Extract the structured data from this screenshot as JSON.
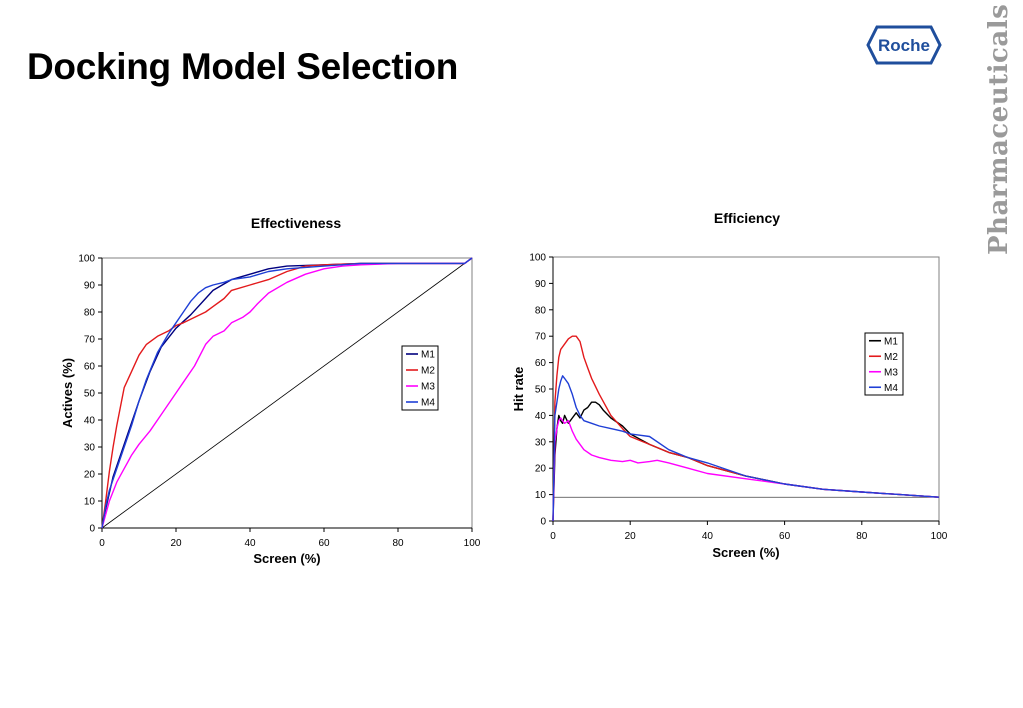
{
  "slide": {
    "title": "Docking Model Selection",
    "logo_text": "Roche",
    "brand_text": "Pharmaceuticals",
    "colors": {
      "logo_blue": "#1f4e9c",
      "brand_gray": "#9a9a9a"
    }
  },
  "chart_data": [
    {
      "type": "line",
      "title": "Effectiveness",
      "xlabel": "Screen (%)",
      "ylabel": "Actives (%)",
      "xlim": [
        0,
        100
      ],
      "ylim": [
        0,
        100
      ],
      "xticks": [
        0,
        20,
        40,
        60,
        80,
        100
      ],
      "yticks": [
        0,
        10,
        20,
        30,
        40,
        50,
        60,
        70,
        80,
        90,
        100
      ],
      "legend": "right",
      "grid": false,
      "reference_line": {
        "x": [
          0,
          100
        ],
        "y": [
          0,
          100
        ],
        "color": "#000000"
      },
      "series": [
        {
          "name": "M1",
          "color": "#00007f",
          "x": [
            0,
            1,
            2,
            3,
            5,
            7,
            10,
            13,
            16,
            20,
            24,
            28,
            30,
            35,
            40,
            45,
            50,
            60,
            70,
            80,
            90,
            98,
            99,
            100
          ],
          "y": [
            0,
            7,
            13,
            19,
            27,
            35,
            47,
            58,
            67,
            74,
            79,
            85,
            88,
            92,
            94,
            96,
            97,
            97.5,
            98,
            98,
            98,
            98,
            99,
            100
          ]
        },
        {
          "name": "M2",
          "color": "#e31a1c",
          "x": [
            0,
            1,
            2,
            3,
            4,
            5,
            6,
            8,
            10,
            12,
            15,
            18,
            20,
            22,
            25,
            28,
            30,
            33,
            35,
            40,
            45,
            50,
            55,
            60,
            70,
            80,
            90,
            98,
            99,
            100
          ],
          "y": [
            0,
            10,
            21,
            30,
            38,
            45,
            52,
            58,
            64,
            68,
            71,
            73,
            75,
            76,
            78,
            80,
            82,
            85,
            88,
            90,
            92,
            95,
            97,
            97.5,
            98,
            98,
            98,
            98,
            99,
            100
          ]
        },
        {
          "name": "M3",
          "color": "#ff00ff",
          "x": [
            0,
            2,
            4,
            6,
            8,
            10,
            13,
            16,
            20,
            22,
            25,
            28,
            30,
            33,
            35,
            38,
            40,
            42,
            45,
            50,
            55,
            60,
            65,
            70,
            80,
            90,
            98,
            99,
            100
          ],
          "y": [
            0,
            10,
            17,
            22,
            27,
            31,
            36,
            42,
            50,
            54,
            60,
            68,
            71,
            73,
            76,
            78,
            80,
            83,
            87,
            91,
            94,
            96,
            97,
            97.5,
            98,
            98,
            98,
            99,
            100
          ]
        },
        {
          "name": "M4",
          "color": "#1f3fd6",
          "x": [
            0,
            1,
            2,
            4,
            6,
            8,
            10,
            12,
            15,
            18,
            20,
            22,
            24,
            26,
            28,
            30,
            33,
            35,
            40,
            45,
            50,
            60,
            70,
            80,
            90,
            98,
            99,
            100
          ],
          "y": [
            0,
            8,
            14,
            22,
            30,
            38,
            47,
            55,
            65,
            72,
            76,
            80,
            84,
            87,
            89,
            90,
            91,
            92,
            93,
            95,
            96,
            97,
            98,
            98,
            98,
            98,
            99,
            100
          ]
        }
      ]
    },
    {
      "type": "line",
      "title": "Efficiency",
      "xlabel": "Screen (%)",
      "ylabel": "Hit rate",
      "xlim": [
        0,
        100
      ],
      "ylim": [
        0,
        100
      ],
      "xticks": [
        0,
        20,
        40,
        60,
        80,
        100
      ],
      "yticks": [
        0,
        10,
        20,
        30,
        40,
        50,
        60,
        70,
        80,
        90,
        100
      ],
      "legend": "right",
      "grid": false,
      "reference_line": {
        "x": [
          0,
          100
        ],
        "y": [
          9,
          9
        ],
        "color": "#404040"
      },
      "series": [
        {
          "name": "M1",
          "color": "#000000",
          "x": [
            0,
            0.5,
            1,
            1.5,
            2,
            2.5,
            3,
            4,
            5,
            6,
            7,
            8,
            9,
            10,
            11,
            12,
            13,
            15,
            18,
            20,
            25,
            30,
            35,
            40,
            50,
            60,
            70,
            80,
            90,
            100
          ],
          "y": [
            0,
            25,
            35,
            40,
            38,
            37,
            40,
            37,
            39,
            41,
            39,
            42,
            43,
            45,
            45,
            44,
            42,
            39,
            36,
            33,
            29,
            26,
            24,
            21,
            17,
            14,
            12,
            11,
            10,
            9
          ]
        },
        {
          "name": "M2",
          "color": "#e31a1c",
          "x": [
            0,
            0.5,
            1,
            1.5,
            2,
            3,
            4,
            5,
            6,
            7,
            8,
            9,
            10,
            12,
            15,
            18,
            20,
            25,
            30,
            35,
            40,
            50,
            60,
            70,
            80,
            90,
            100
          ],
          "y": [
            0,
            45,
            55,
            62,
            65,
            67,
            69,
            70,
            70,
            68,
            62,
            58,
            54,
            48,
            40,
            35,
            32,
            29,
            26,
            24,
            21,
            17,
            14,
            12,
            11,
            10,
            9
          ]
        },
        {
          "name": "M3",
          "color": "#ff00ff",
          "x": [
            0,
            0.5,
            1,
            1.5,
            2,
            3,
            4,
            5,
            6,
            8,
            10,
            12,
            15,
            18,
            20,
            22,
            25,
            27,
            30,
            35,
            40,
            50,
            60,
            70,
            80,
            90,
            100
          ],
          "y": [
            0,
            30,
            35,
            38,
            39,
            37,
            38,
            34,
            31,
            27,
            25,
            24,
            23,
            22.5,
            23,
            22,
            22.5,
            23,
            22,
            20,
            18,
            16,
            14,
            12,
            11,
            10,
            9
          ]
        },
        {
          "name": "M4",
          "color": "#1f3fd6",
          "x": [
            0,
            0.5,
            1,
            1.5,
            2,
            2.5,
            3,
            4,
            5,
            6,
            7,
            8,
            10,
            12,
            15,
            18,
            20,
            25,
            30,
            35,
            40,
            50,
            60,
            70,
            80,
            90,
            100
          ],
          "y": [
            0,
            40,
            45,
            50,
            53,
            55,
            54,
            52,
            48,
            43,
            40,
            38,
            37,
            36,
            35,
            34,
            33,
            32,
            27,
            24,
            22,
            17,
            14,
            12,
            11,
            10,
            9
          ]
        }
      ]
    }
  ]
}
